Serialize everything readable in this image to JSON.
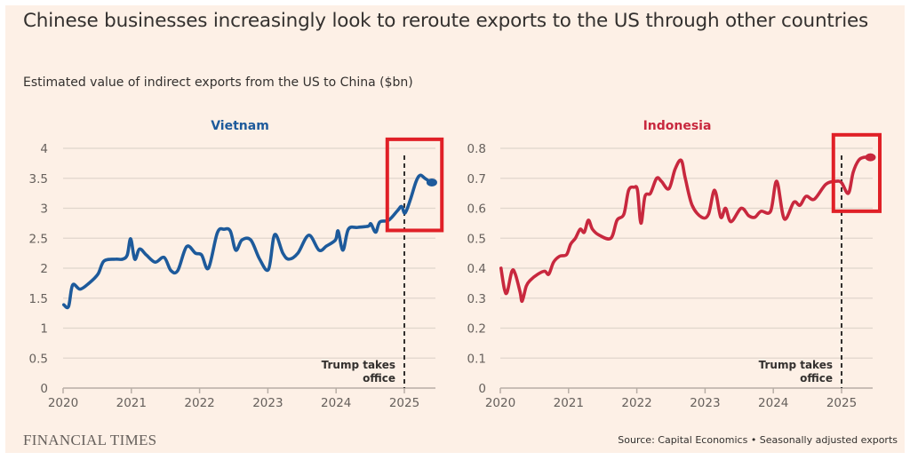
{
  "header": {
    "title": "Chinese businesses increasingly look to reroute exports to the US through other countries",
    "subtitle": "Estimated value of indirect exports from the US to China ($bn)"
  },
  "footer": {
    "logo": "FINANCIAL TIMES",
    "source": "Source: Capital Economics • Seasonally adjusted exports"
  },
  "colors": {
    "background": "#fdf0e6",
    "vietnam": "#1d5a9b",
    "indonesia": "#c8283e",
    "highlight_box": "#e02027",
    "gridline": "#e0d6cc"
  },
  "chart_data": [
    {
      "type": "line",
      "title": "Vietnam",
      "xlabel": "",
      "ylabel": "$bn",
      "xlim": [
        2020,
        2025.45
      ],
      "ylim": [
        0,
        4
      ],
      "yticks": [
        "0",
        "0.5",
        "1",
        "1.5",
        "2",
        "2.5",
        "3",
        "3.5",
        "4"
      ],
      "yticks_values": [
        0,
        0.5,
        1,
        1.5,
        2,
        2.5,
        3,
        3.5,
        4
      ],
      "xticks": [
        "2020",
        "2021",
        "2022",
        "2023",
        "2024",
        "2025"
      ],
      "xticks_values": [
        2020,
        2021,
        2022,
        2023,
        2024,
        2025
      ],
      "grid": true,
      "annotation": {
        "x": 2025.0,
        "label_line1": "Trump takes",
        "label_line2": "office"
      },
      "highlight": {
        "x_range": [
          2024.75,
          2025.55
        ],
        "y_range": [
          2.63,
          4.15
        ]
      },
      "series": [
        {
          "name": "Vietnam",
          "x": [
            2020.01,
            2020.08,
            2020.14,
            2020.25,
            2020.38,
            2020.51,
            2020.6,
            2020.77,
            2020.87,
            2020.94,
            2020.99,
            2021.05,
            2021.12,
            2021.22,
            2021.35,
            2021.48,
            2021.58,
            2021.68,
            2021.81,
            2021.94,
            2022.03,
            2022.13,
            2022.26,
            2022.36,
            2022.45,
            2022.53,
            2022.62,
            2022.75,
            2022.88,
            2023.01,
            2023.1,
            2023.22,
            2023.31,
            2023.44,
            2023.6,
            2023.75,
            2023.86,
            2023.99,
            2024.03,
            2024.1,
            2024.18,
            2024.31,
            2024.47,
            2024.51,
            2024.58,
            2024.64,
            2024.77,
            2024.9,
            2024.96,
            2025.01,
            2025.09,
            2025.17,
            2025.23,
            2025.3,
            2025.39
          ],
          "y": [
            1.39,
            1.36,
            1.72,
            1.65,
            1.75,
            1.9,
            2.12,
            2.15,
            2.15,
            2.22,
            2.49,
            2.15,
            2.32,
            2.22,
            2.1,
            2.18,
            1.96,
            1.96,
            2.36,
            2.25,
            2.22,
            2.0,
            2.59,
            2.65,
            2.62,
            2.3,
            2.47,
            2.47,
            2.15,
            1.98,
            2.56,
            2.25,
            2.15,
            2.25,
            2.55,
            2.3,
            2.37,
            2.47,
            2.62,
            2.3,
            2.65,
            2.68,
            2.7,
            2.74,
            2.6,
            2.77,
            2.8,
            2.96,
            3.03,
            2.92,
            3.15,
            3.44,
            3.55,
            3.5,
            3.43
          ]
        }
      ]
    },
    {
      "type": "line",
      "title": "Indonesia",
      "xlabel": "",
      "ylabel": "$bn",
      "xlim": [
        2020,
        2025.45
      ],
      "ylim": [
        0,
        0.8
      ],
      "yticks": [
        "0",
        "0.1",
        "0.2",
        "0.3",
        "0.4",
        "0.5",
        "0.6",
        "0.7",
        "0.8"
      ],
      "yticks_values": [
        0,
        0.1,
        0.2,
        0.3,
        0.4,
        0.5,
        0.6,
        0.7,
        0.8
      ],
      "xticks": [
        "2020",
        "2021",
        "2022",
        "2023",
        "2024",
        "2025"
      ],
      "xticks_values": [
        2020,
        2021,
        2022,
        2023,
        2024,
        2025
      ],
      "grid": true,
      "annotation": {
        "x": 2025.0,
        "label_line1": "Trump takes",
        "label_line2": "office"
      },
      "highlight": {
        "x_range": [
          2024.88,
          2025.56
        ],
        "y_range": [
          0.59,
          0.845
        ]
      },
      "series": [
        {
          "name": "Indonesia",
          "x": [
            2020.01,
            2020.06,
            2020.1,
            2020.17,
            2020.22,
            2020.29,
            2020.32,
            2020.38,
            2020.44,
            2020.55,
            2020.65,
            2020.71,
            2020.78,
            2020.87,
            2020.97,
            2021.03,
            2021.1,
            2021.17,
            2021.23,
            2021.29,
            2021.35,
            2021.45,
            2021.62,
            2021.71,
            2021.81,
            2021.88,
            2021.96,
            2022.01,
            2022.06,
            2022.12,
            2022.2,
            2022.29,
            2022.36,
            2022.47,
            2022.56,
            2022.65,
            2022.71,
            2022.81,
            2022.95,
            2023.05,
            2023.14,
            2023.23,
            2023.3,
            2023.38,
            2023.53,
            2023.64,
            2023.73,
            2023.82,
            2023.96,
            2024.05,
            2024.16,
            2024.3,
            2024.39,
            2024.48,
            2024.6,
            2024.77,
            2024.92,
            2025.0,
            2025.1,
            2025.17,
            2025.25,
            2025.33,
            2025.41
          ],
          "y": [
            0.4,
            0.33,
            0.32,
            0.39,
            0.38,
            0.32,
            0.29,
            0.34,
            0.36,
            0.38,
            0.39,
            0.38,
            0.42,
            0.44,
            0.445,
            0.48,
            0.5,
            0.53,
            0.52,
            0.56,
            0.53,
            0.51,
            0.5,
            0.56,
            0.58,
            0.66,
            0.67,
            0.66,
            0.55,
            0.64,
            0.65,
            0.7,
            0.69,
            0.665,
            0.73,
            0.76,
            0.7,
            0.61,
            0.57,
            0.58,
            0.66,
            0.57,
            0.6,
            0.555,
            0.6,
            0.575,
            0.57,
            0.59,
            0.59,
            0.69,
            0.565,
            0.62,
            0.61,
            0.64,
            0.63,
            0.68,
            0.69,
            0.685,
            0.65,
            0.72,
            0.76,
            0.77,
            0.77
          ]
        }
      ]
    }
  ]
}
